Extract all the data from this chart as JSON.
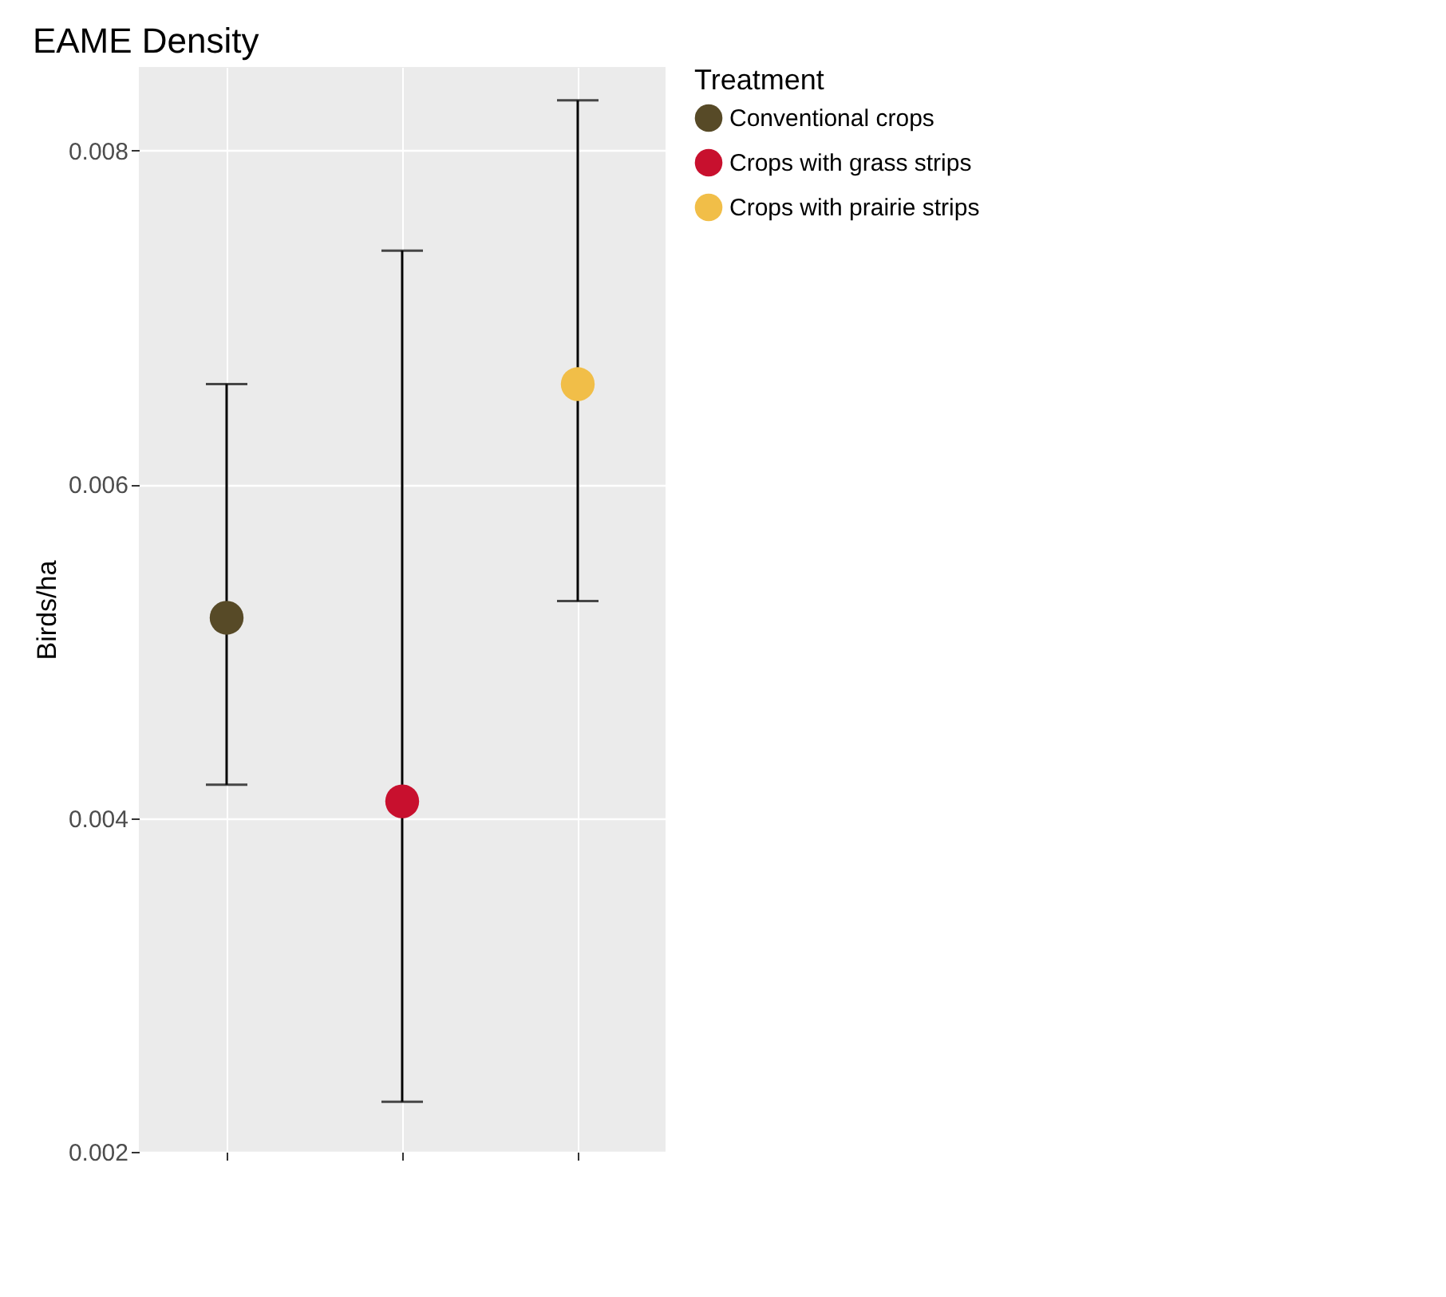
{
  "chart_data": {
    "type": "scatter",
    "title": "EAME Density",
    "ylabel": "Birds/ha",
    "legend_title": "Treatment",
    "categories": [
      null,
      null,
      null
    ],
    "series": [
      {
        "name": "Conventional crops",
        "color": "#574a27",
        "values": [
          0.0052,
          null,
          null
        ],
        "errors": [
          [
            0.0042,
            0.0066
          ],
          null,
          null
        ]
      },
      {
        "name": "Crops with grass strips",
        "color": "#c8102e",
        "values": [
          null,
          0.0041,
          null
        ],
        "errors": [
          null,
          [
            0.0023,
            0.0074
          ],
          null
        ]
      },
      {
        "name": "Crops with prairie strips",
        "color": "#f1be48",
        "values": [
          null,
          null,
          0.0066
        ],
        "errors": [
          null,
          null,
          [
            0.0053,
            0.0083
          ]
        ]
      }
    ],
    "ylim": [
      0.002,
      0.0085
    ],
    "yticks": [
      0.002,
      0.004,
      0.006,
      0.008
    ],
    "grid": true,
    "legend": "right",
    "marker": "circle"
  }
}
